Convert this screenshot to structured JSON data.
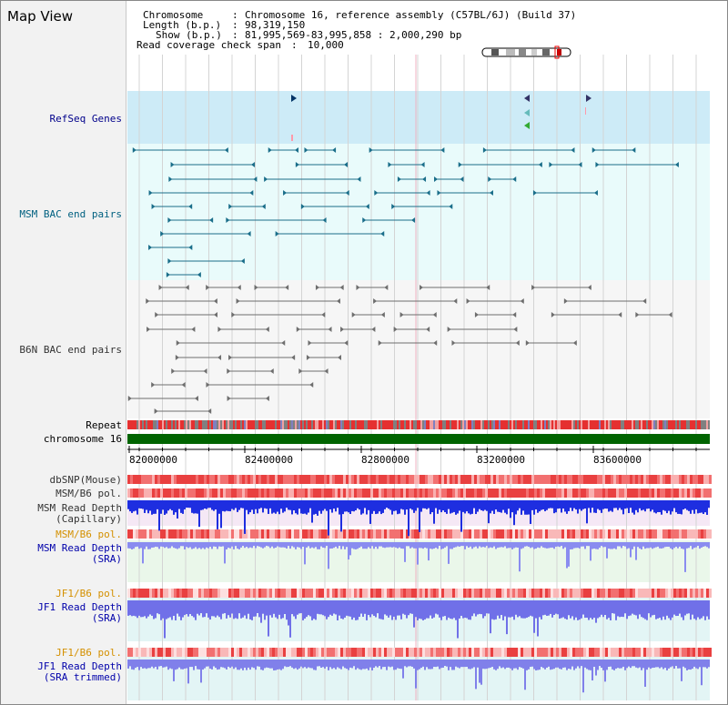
{
  "title": "Map View",
  "info": {
    "chromosome_key": "Chromosome",
    "chromosome_value": "Chromosome 16, reference assembly (C57BL/6J) (Build 37)",
    "length_key": "Length (b.p.)",
    "length_value": "98,319,150",
    "show_key": "Show (b.p.)",
    "show_value": "81,995,569-83,995,858 : 2,000,290 bp",
    "span_key": "Read coverage check span",
    "span_value": "10,000"
  },
  "tracks": {
    "refseq": "RefSeq Genes",
    "msm_bac": "MSM BAC end pairs",
    "b6n_bac": "B6N BAC end pairs",
    "repeat": "Repeat",
    "chromosome": "chromosome 16",
    "dbsnp": "dbSNP(Mouse)",
    "msm_b6_pol_1": "MSM/B6 pol.",
    "msm_depth_cap_1": "MSM Read Depth",
    "msm_depth_cap_2": "(Capillary)",
    "msm_b6_pol_2": "MSM/B6 pol.",
    "msm_depth_sra_1": "MSM Read Depth",
    "msm_depth_sra_2": "(SRA)",
    "jf1_b6_pol_1": "JF1/B6 pol.",
    "jf1_depth_sra_1": "JF1 Read Depth",
    "jf1_depth_sra_2": "(SRA)",
    "jf1_b6_pol_2": "JF1/B6 pol.",
    "jf1_depth_trim_1": "JF1 Read Depth",
    "jf1_depth_trim_2": "(SRA trimmed)"
  },
  "axis": {
    "ticks": [
      "82000000",
      "82400000",
      "82800000",
      "83200000",
      "83600000"
    ]
  },
  "colors": {
    "refseq_label": "#00008b",
    "msm_label": "#006080",
    "b6n_label": "#333333",
    "pol_label": "#d49000",
    "depth_label": "#0000aa",
    "chromosome_bar": "#006400"
  }
}
